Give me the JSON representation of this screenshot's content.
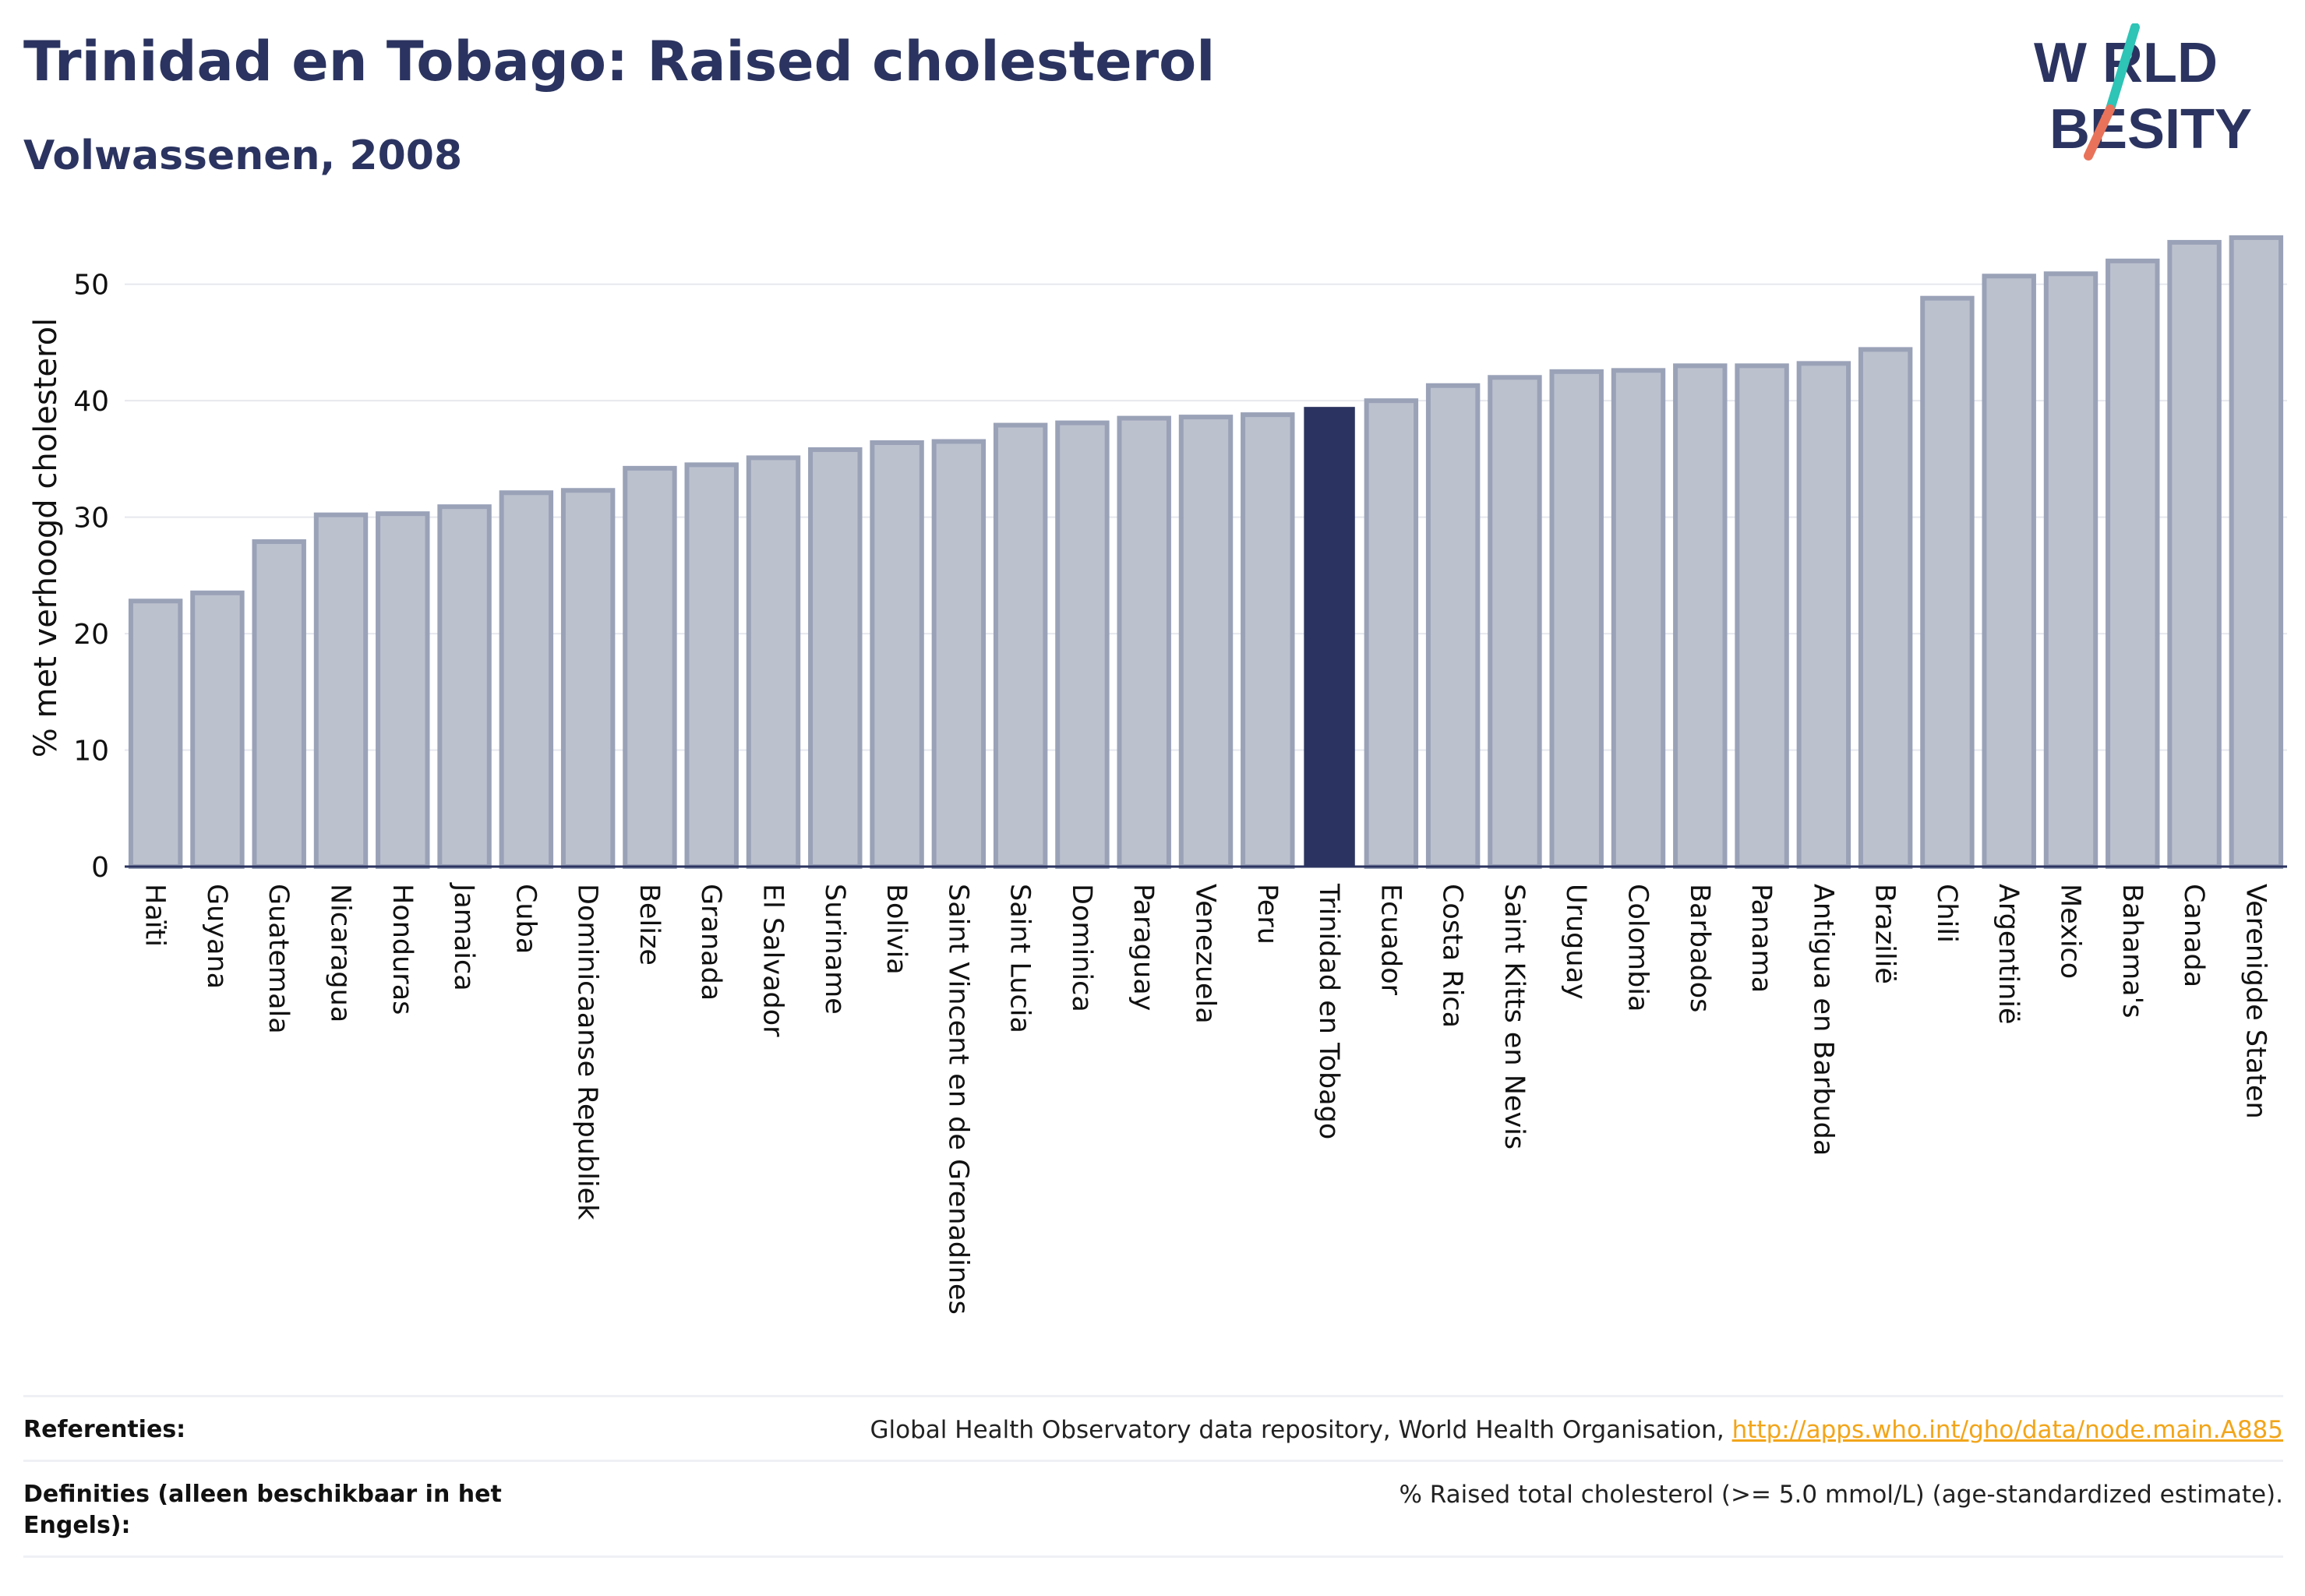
{
  "header": {
    "title": "Trinidad en Tobago: Raised cholesterol",
    "subtitle": "Volwassenen, 2008"
  },
  "logo": {
    "line1": "W RLD",
    "line2": " BESITY",
    "text": "WORLD OBESITY",
    "colors": {
      "text": "#2b3460",
      "slash_top": "#2ec4b6",
      "slash_bottom": "#e8735a"
    }
  },
  "colors": {
    "bar_fill": "#bcc1ce",
    "bar_stroke": "#9aa2b8",
    "highlight": "#2b3460",
    "grid": "#e6e8ee",
    "axis": "#2b3460"
  },
  "chart_data": {
    "type": "bar",
    "ylabel": "% met verhoogd cholesterol",
    "ylim": [
      0,
      55
    ],
    "yticks": [
      0,
      10,
      20,
      30,
      40,
      50
    ],
    "grid": true,
    "highlight": "Trinidad en Tobago",
    "categories": [
      "Haïti",
      "Guyana",
      "Guatemala",
      "Nicaragua",
      "Honduras",
      "Jamaica",
      "Cuba",
      "Dominicaanse Republiek",
      "Belize",
      "Granada",
      "El Salvador",
      "Suriname",
      "Bolivia",
      "Saint Vincent en de Grenadines",
      "Saint Lucia",
      "Dominica",
      "Paraguay",
      "Venezuela",
      "Peru",
      "Trinidad en Tobago",
      "Ecuador",
      "Costa Rica",
      "Saint Kitts en Nevis",
      "Uruguay",
      "Colombia",
      "Barbados",
      "Panama",
      "Antigua en Barbuda",
      "Brazilië",
      "Chili",
      "Argentinië",
      "Mexico",
      "Bahama's",
      "Canada",
      "Verenigde Staten"
    ],
    "values": [
      22.8,
      23.5,
      27.9,
      30.2,
      30.3,
      30.9,
      32.1,
      32.3,
      34.2,
      34.5,
      35.1,
      35.8,
      36.4,
      36.5,
      37.9,
      38.1,
      38.5,
      38.6,
      38.8,
      39.4,
      40.0,
      41.3,
      42.0,
      42.5,
      42.6,
      43.0,
      43.0,
      43.2,
      44.4,
      48.8,
      50.7,
      50.9,
      52.0,
      53.6,
      54.0
    ]
  },
  "footer": {
    "references_label": "Referenties:",
    "references_text": "Global Health Observatory data repository, World Health Organisation, ",
    "references_link": "http://apps.who.int/gho/data/node.main.A885",
    "definitions_label": "Definities (alleen beschikbaar in het Engels):",
    "definitions_text": "% Raised total cholesterol (>= 5.0 mmol/L) (age-standardized estimate)."
  }
}
